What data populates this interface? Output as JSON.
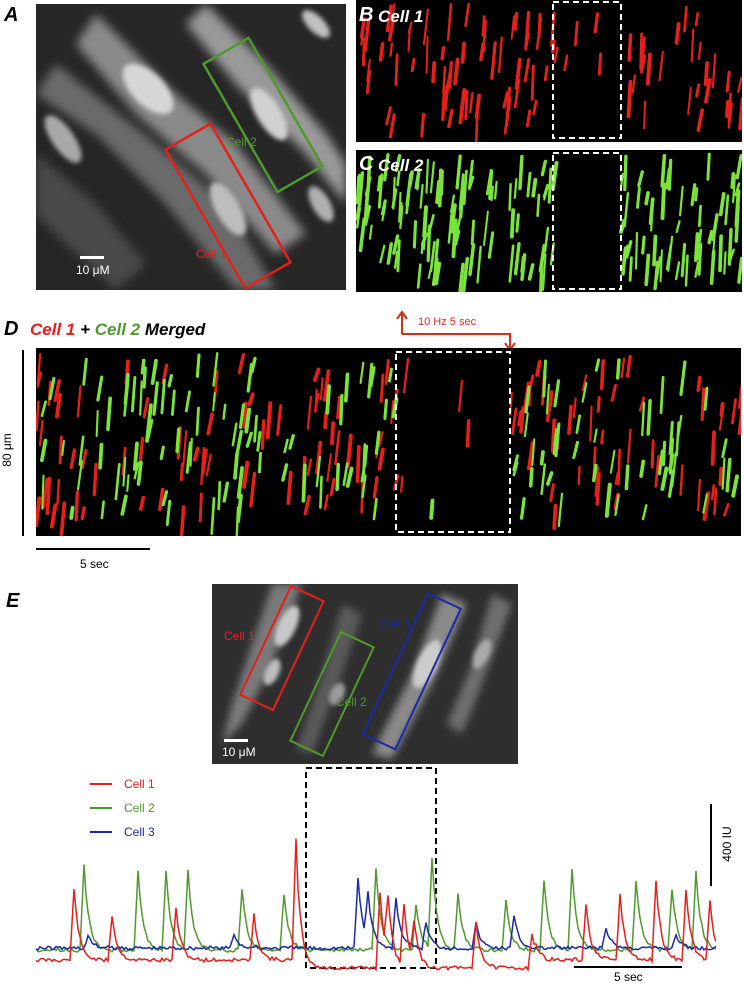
{
  "panel_a": {
    "letter": "A",
    "roi_labels": [
      "Cell 2",
      "Cell 1"
    ],
    "scale_label": "10 μM"
  },
  "panel_b": {
    "letter": "B",
    "title": "Cell 1"
  },
  "panel_c": {
    "letter": "C",
    "title": "Cell 2"
  },
  "panel_d": {
    "letter": "D",
    "title_cell1": "Cell 1",
    "title_plus": "+",
    "title_cell2": "Cell 2",
    "title_merged": "Merged",
    "stim_label": "10 Hz 5 sec",
    "y_scale_label": "80 μm",
    "time_scale_label": "5 sec"
  },
  "panel_e": {
    "letter": "E",
    "roi_labels": [
      "Cell 1",
      "Cell 2",
      "Cell 3"
    ],
    "scale_label": "10 μM",
    "legend": [
      {
        "name": "Cell 1",
        "color": "#e3201b"
      },
      {
        "name": "Cell 2",
        "color": "#4f9a2c"
      },
      {
        "name": "Cell 3",
        "color": "#1a2aa6"
      }
    ],
    "y_scale_label": "400 IU",
    "time_scale_label": "5 sec"
  },
  "colors": {
    "cell1": "#e3201b",
    "cell2": "#4f9a2c",
    "cell2_bright": "#7be33a",
    "cell3": "#1a2aa6",
    "stim_arrow": "#d32f1e"
  }
}
